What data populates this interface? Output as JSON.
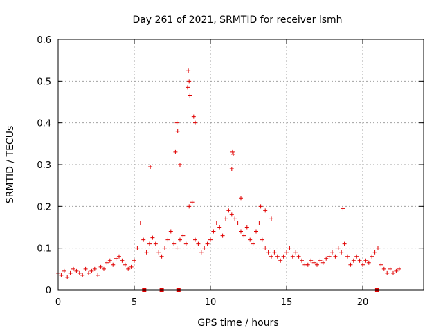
{
  "chart_data": {
    "type": "scatter",
    "title": "Day 261 of 2021, SRMTID for receiver lsmh",
    "xlabel": "GPS time / hours",
    "ylabel": "SRMTID / TECUs",
    "xlim": [
      0,
      24
    ],
    "ylim": [
      0,
      0.6
    ],
    "xticks": [
      0,
      5,
      10,
      15,
      20
    ],
    "yticks": [
      0,
      0.1,
      0.2,
      0.3,
      0.4,
      0.5,
      0.6
    ],
    "grid": true,
    "marker": "plus",
    "color": "#e00000",
    "series": [
      {
        "name": "SRMTID",
        "x": [
          0.0,
          0.2,
          0.4,
          0.6,
          0.8,
          1.0,
          1.2,
          1.4,
          1.6,
          1.8,
          2.0,
          2.2,
          2.4,
          2.6,
          2.8,
          3.0,
          3.2,
          3.4,
          3.6,
          3.8,
          4.0,
          4.2,
          4.4,
          4.6,
          4.8,
          5.0,
          5.2,
          5.4,
          5.6,
          5.8,
          6.0,
          6.2,
          6.4,
          6.6,
          6.8,
          7.0,
          7.2,
          7.4,
          7.6,
          7.8,
          8.0,
          8.2,
          8.4,
          8.6,
          8.8,
          9.0,
          9.2,
          9.4,
          9.6,
          9.8,
          10.0,
          10.2,
          10.4,
          10.6,
          10.8,
          11.0,
          11.2,
          11.4,
          11.6,
          11.8,
          12.0,
          12.2,
          12.4,
          12.6,
          12.8,
          13.0,
          13.2,
          13.4,
          13.6,
          13.8,
          14.0,
          14.2,
          14.4,
          14.6,
          14.8,
          15.0,
          15.2,
          15.4,
          15.6,
          15.8,
          16.0,
          16.2,
          16.4,
          16.6,
          16.8,
          17.0,
          17.2,
          17.4,
          17.6,
          17.8,
          18.0,
          18.2,
          18.4,
          18.6,
          18.8,
          19.0,
          19.2,
          19.4,
          19.6,
          19.8,
          20.0,
          20.2,
          20.4,
          20.6,
          20.8,
          21.0,
          21.2,
          21.4,
          21.6,
          21.8,
          22.0,
          22.2,
          22.4,
          8.55,
          8.6,
          8.5,
          8.65,
          8.9,
          9.0,
          7.8,
          7.85,
          11.45,
          11.5,
          11.4,
          6.05,
          8.0,
          18.7,
          7.7,
          12.0,
          13.3,
          13.6,
          14.0
        ],
        "y": [
          0.04,
          0.035,
          0.045,
          0.03,
          0.04,
          0.05,
          0.045,
          0.04,
          0.035,
          0.05,
          0.04,
          0.045,
          0.05,
          0.035,
          0.055,
          0.05,
          0.065,
          0.07,
          0.06,
          0.075,
          0.08,
          0.07,
          0.06,
          0.05,
          0.055,
          0.07,
          0.1,
          0.16,
          0.12,
          0.09,
          0.11,
          0.125,
          0.11,
          0.09,
          0.08,
          0.1,
          0.12,
          0.14,
          0.11,
          0.1,
          0.12,
          0.13,
          0.11,
          0.2,
          0.21,
          0.12,
          0.11,
          0.09,
          0.1,
          0.11,
          0.12,
          0.14,
          0.16,
          0.15,
          0.13,
          0.17,
          0.19,
          0.18,
          0.17,
          0.16,
          0.14,
          0.13,
          0.15,
          0.12,
          0.11,
          0.14,
          0.16,
          0.12,
          0.1,
          0.09,
          0.08,
          0.09,
          0.08,
          0.07,
          0.08,
          0.09,
          0.1,
          0.08,
          0.09,
          0.08,
          0.07,
          0.06,
          0.06,
          0.07,
          0.065,
          0.06,
          0.07,
          0.065,
          0.075,
          0.08,
          0.09,
          0.08,
          0.1,
          0.09,
          0.11,
          0.08,
          0.06,
          0.07,
          0.08,
          0.07,
          0.06,
          0.07,
          0.065,
          0.08,
          0.09,
          0.1,
          0.06,
          0.05,
          0.04,
          0.05,
          0.04,
          0.045,
          0.05,
          0.525,
          0.5,
          0.485,
          0.465,
          0.415,
          0.4,
          0.4,
          0.38,
          0.33,
          0.325,
          0.29,
          0.295,
          0.3,
          0.195,
          0.33,
          0.22,
          0.2,
          0.19,
          0.17
        ]
      }
    ],
    "gap_markers_x": [
      5.65,
      6.8,
      7.9,
      20.95
    ]
  }
}
